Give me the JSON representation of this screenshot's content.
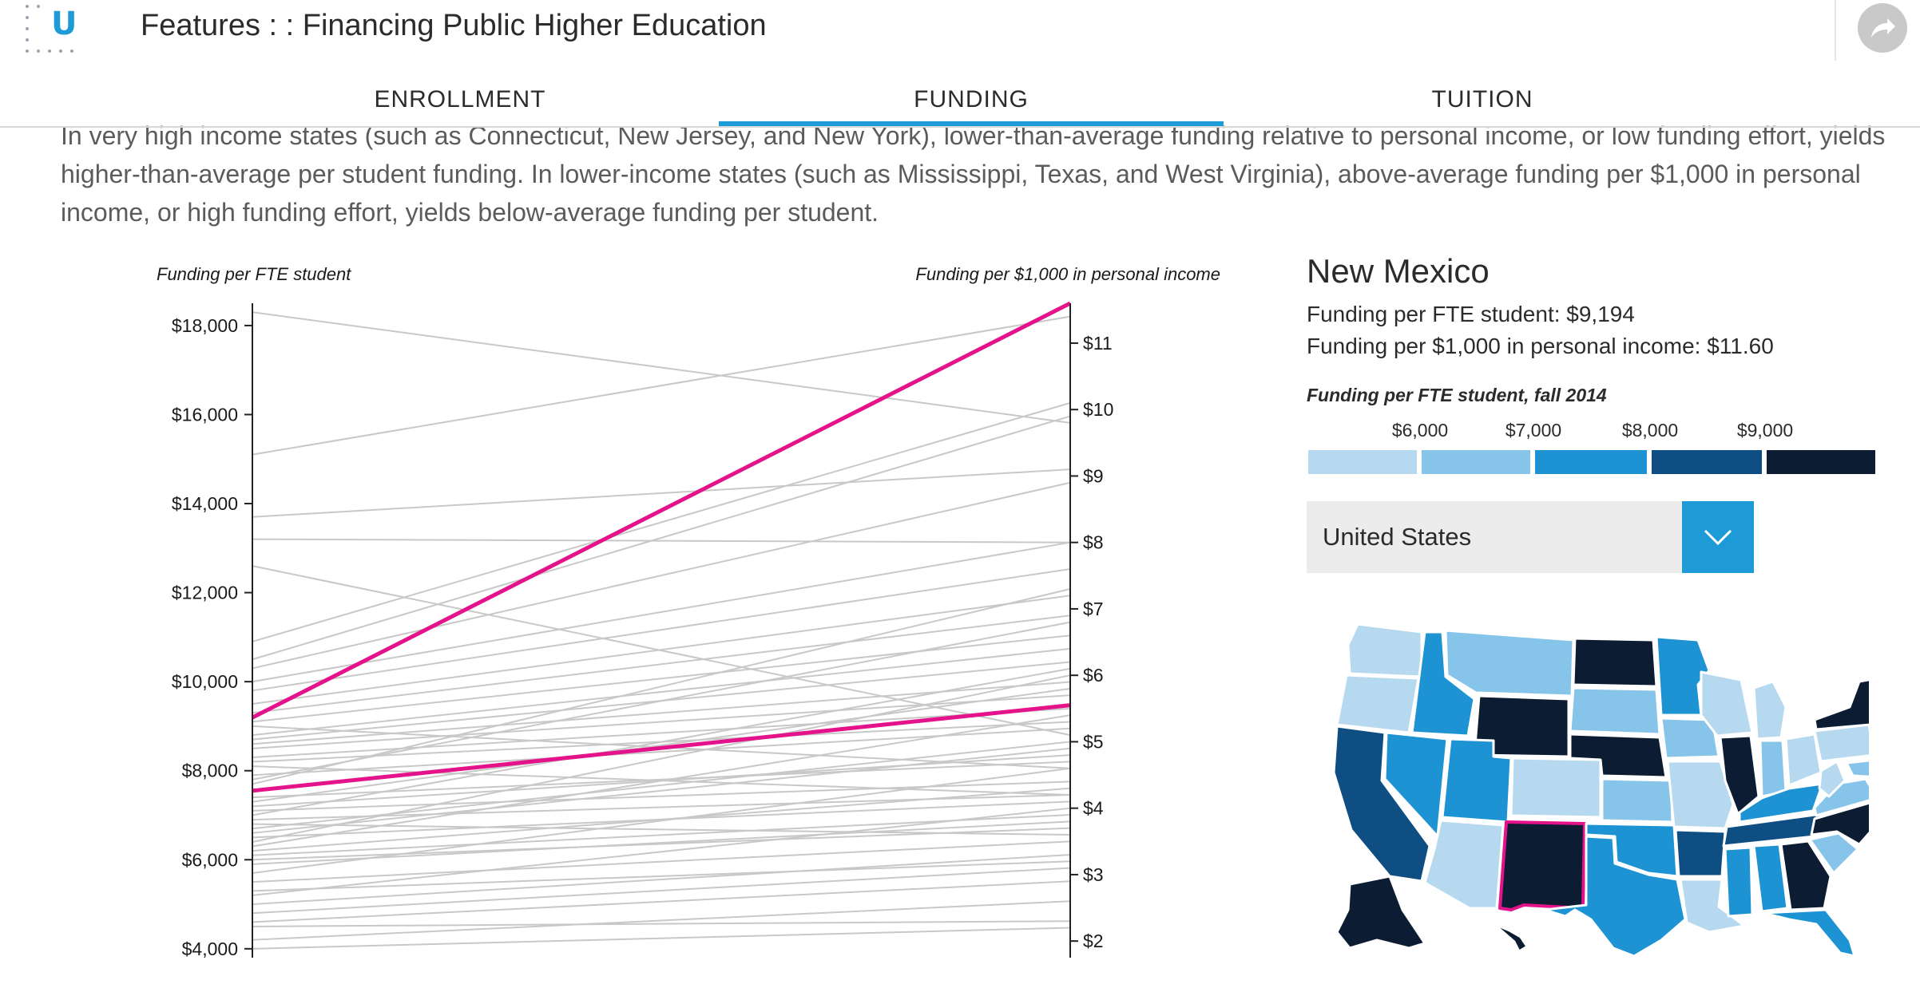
{
  "header": {
    "logo_letter": "U",
    "title": "Features : : Financing Public Higher Education",
    "share_icon": "share-arrow-icon"
  },
  "tabs": [
    {
      "label": "ENROLLMENT",
      "active": false
    },
    {
      "label": "FUNDING",
      "active": true
    },
    {
      "label": "TUITION",
      "active": false
    }
  ],
  "intro_text": "In very high income states (such as Connecticut, New Jersey, and New York), lower-than-average funding relative to personal income, or low funding effort, yields higher-than-average per student funding. In lower-income states (such as Mississippi, Texas, and West Virginia), above-average funding per $1,000 in personal income, or high funding effort, yields below-average funding per student.",
  "chart_data": {
    "type": "slope",
    "left_axis": {
      "title": "Funding per FTE student",
      "range": [
        3800,
        18500
      ],
      "ticks": [
        4000,
        6000,
        8000,
        10000,
        12000,
        14000,
        16000,
        18000
      ],
      "tick_labels": [
        "$4,000",
        "$6,000",
        "$8,000",
        "$10,000",
        "$12,000",
        "$14,000",
        "$16,000",
        "$18,000"
      ]
    },
    "right_axis": {
      "title": "Funding per $1,000 in personal income",
      "range": [
        1.75,
        11.6
      ],
      "ticks": [
        2,
        3,
        4,
        5,
        6,
        7,
        8,
        9,
        10,
        11
      ],
      "tick_labels": [
        "$2",
        "$3",
        "$4",
        "$5",
        "$6",
        "$7",
        "$8",
        "$9",
        "$10",
        "$11"
      ]
    },
    "highlight_color": "#e5138a",
    "line_color": "#c8c8c8",
    "highlighted": [
      {
        "left": 9194,
        "right": 11.6
      },
      {
        "left": 7550,
        "right": 5.55
      }
    ],
    "lines": [
      [
        18300,
        9.8
      ],
      [
        15100,
        11.4
      ],
      [
        13700,
        9.1
      ],
      [
        13200,
        8.0
      ],
      [
        12600,
        5.1
      ],
      [
        10900,
        10.1
      ],
      [
        10500,
        9.9
      ],
      [
        10300,
        8.9
      ],
      [
        10000,
        8.0
      ],
      [
        9800,
        7.6
      ],
      [
        9500,
        7.2
      ],
      [
        9300,
        6.9
      ],
      [
        9100,
        6.6
      ],
      [
        9000,
        4.6
      ],
      [
        8800,
        6.4
      ],
      [
        8700,
        6.2
      ],
      [
        8600,
        5.9
      ],
      [
        8500,
        5.7
      ],
      [
        8300,
        5.5
      ],
      [
        8200,
        5.3
      ],
      [
        8100,
        4.2
      ],
      [
        7900,
        5.2
      ],
      [
        7800,
        6.8
      ],
      [
        7700,
        7.3
      ],
      [
        7400,
        4.7
      ],
      [
        7300,
        5.8
      ],
      [
        7200,
        4.8
      ],
      [
        7100,
        4.4
      ],
      [
        7000,
        6.1
      ],
      [
        6900,
        4.2
      ],
      [
        6800,
        3.6
      ],
      [
        6700,
        5.0
      ],
      [
        6600,
        4.9
      ],
      [
        6500,
        4.1
      ],
      [
        6400,
        6.0
      ],
      [
        6300,
        5.4
      ],
      [
        6200,
        4.3
      ],
      [
        6100,
        3.9
      ],
      [
        6000,
        3.7
      ],
      [
        5900,
        3.8
      ],
      [
        5700,
        4.6
      ],
      [
        5500,
        3.5
      ],
      [
        5300,
        3.2
      ],
      [
        5200,
        4.0
      ],
      [
        5000,
        3.3
      ],
      [
        4800,
        3.1
      ],
      [
        4600,
        2.9
      ],
      [
        4500,
        2.3
      ],
      [
        4200,
        2.6
      ],
      [
        4000,
        2.2
      ]
    ]
  },
  "side_panel": {
    "state_name": "New Mexico",
    "stat_fte": "Funding per FTE student: $9,194",
    "stat_income": "Funding per $1,000 in personal income: $11.60",
    "legend_title": "Funding per FTE student, fall 2014",
    "legend_ticks": [
      "$6,000",
      "$7,000",
      "$8,000",
      "$9,000"
    ],
    "legend_colors": [
      "#b6d9f0",
      "#86c4e9",
      "#1e93d4",
      "#0e4e83",
      "#0b1c33"
    ],
    "selected_option": "United States",
    "dropdown_icon": "chevron-down-icon",
    "map_highlight_color": "#e5138a"
  }
}
